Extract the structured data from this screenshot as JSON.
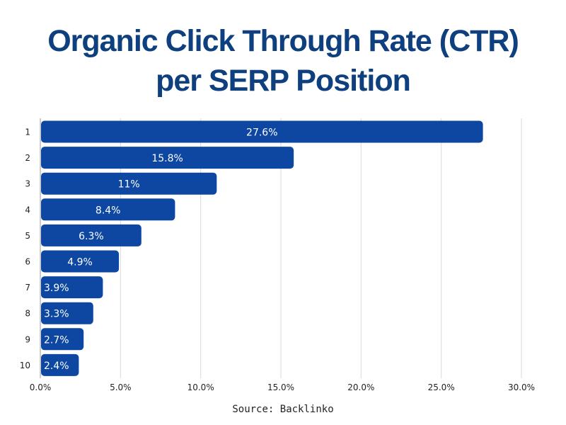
{
  "title_line1": "Organic Click Through Rate (CTR)",
  "title_line2": "per SERP Position",
  "source": "Source: Backlinko",
  "colors": {
    "bar": "#0d47a1",
    "title": "#0e3f7e",
    "grid": "#d9d9d9",
    "axis": "#999999"
  },
  "chart_data": {
    "type": "bar",
    "orientation": "horizontal",
    "title": "Organic Click Through Rate (CTR) per SERP Position",
    "xlabel": "",
    "ylabel": "",
    "categories": [
      "1",
      "2",
      "3",
      "4",
      "5",
      "6",
      "7",
      "8",
      "9",
      "10"
    ],
    "values": [
      27.6,
      15.8,
      11,
      8.4,
      6.3,
      4.9,
      3.9,
      3.3,
      2.7,
      2.4
    ],
    "data_labels": [
      "27.6%",
      "15.8%",
      "11%",
      "8.4%",
      "6.3%",
      "4.9%",
      "3.9%",
      "3.3%",
      "2.7%",
      "2.4%"
    ],
    "xlim": [
      0,
      30
    ],
    "x_ticks": [
      0,
      5,
      10,
      15,
      20,
      25,
      30
    ],
    "x_tick_labels": [
      "0.0%",
      "5.0%",
      "10.0%",
      "15.0%",
      "20.0%",
      "25.0%",
      "30.0%"
    ],
    "grid": true,
    "legend": "none"
  }
}
